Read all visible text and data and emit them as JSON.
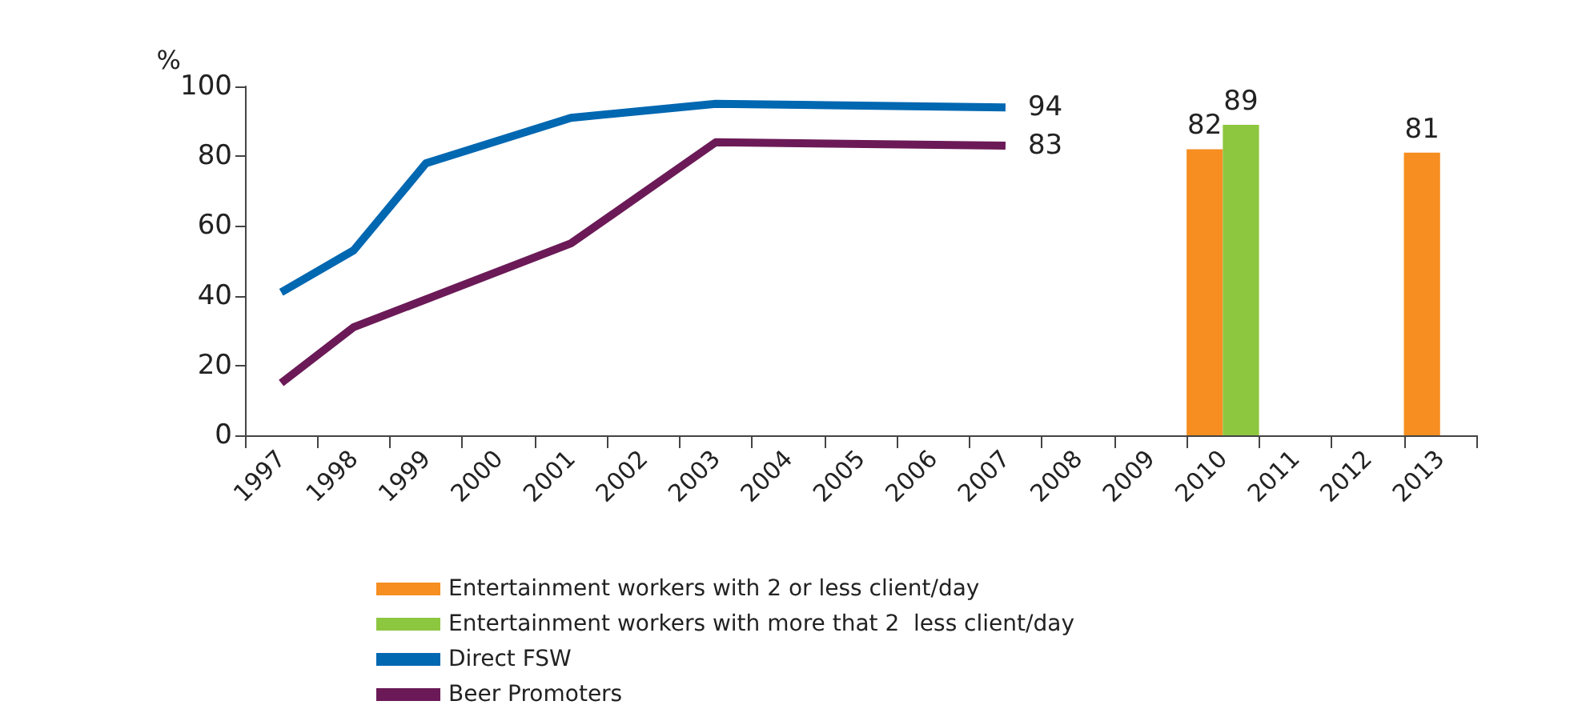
{
  "chart_data": {
    "type": "bar",
    "ylabel": "%",
    "categories": [
      "1997",
      "1998",
      "1999",
      "2000",
      "2001",
      "2002",
      "2003",
      "2004",
      "2005",
      "2006",
      "2007",
      "2008",
      "2009",
      "2010",
      "2011",
      "2012",
      "2013"
    ],
    "series": [
      {
        "name": "Entertainment workers with 2 or less client/day",
        "color": "#f68e21",
        "values": [
          null,
          null,
          null,
          null,
          null,
          null,
          null,
          null,
          null,
          null,
          null,
          null,
          null,
          82,
          null,
          null,
          81
        ],
        "value_labels": [
          null,
          null,
          null,
          null,
          null,
          null,
          null,
          null,
          null,
          null,
          null,
          null,
          null,
          "82",
          null,
          null,
          "81"
        ]
      },
      {
        "name": "Entertainment workers with more that 2  less client/day",
        "color": "#8dc63f",
        "values": [
          null,
          null,
          null,
          null,
          null,
          null,
          null,
          null,
          null,
          null,
          null,
          null,
          null,
          89,
          null,
          null,
          null
        ],
        "value_labels": [
          null,
          null,
          null,
          null,
          null,
          null,
          null,
          null,
          null,
          null,
          null,
          null,
          null,
          "89",
          null,
          null,
          null
        ]
      },
      {
        "name": "Direct FSW",
        "type": "line",
        "color": "#0067b1",
        "values": [
          41,
          53,
          78,
          null,
          91,
          null,
          95,
          null,
          null,
          null,
          94,
          null,
          null,
          null,
          null,
          null,
          null
        ],
        "value_labels": [
          null,
          null,
          null,
          null,
          null,
          null,
          null,
          null,
          null,
          null,
          "94",
          null,
          null,
          null,
          null,
          null,
          null
        ]
      },
      {
        "name": "Beer Promoters",
        "type": "line",
        "color": "#6b1a57",
        "values": [
          15,
          31,
          null,
          null,
          55,
          null,
          84,
          null,
          null,
          null,
          83,
          null,
          null,
          null,
          null,
          null,
          null
        ],
        "value_labels": [
          null,
          null,
          null,
          null,
          null,
          null,
          null,
          null,
          null,
          null,
          "83",
          null,
          null,
          null,
          null,
          null,
          null
        ]
      }
    ],
    "ylim": [
      0,
      100
    ],
    "yticks": [
      0,
      20,
      40,
      60,
      80,
      100
    ],
    "legend": "bottom",
    "grid": false,
    "marker": "none"
  }
}
